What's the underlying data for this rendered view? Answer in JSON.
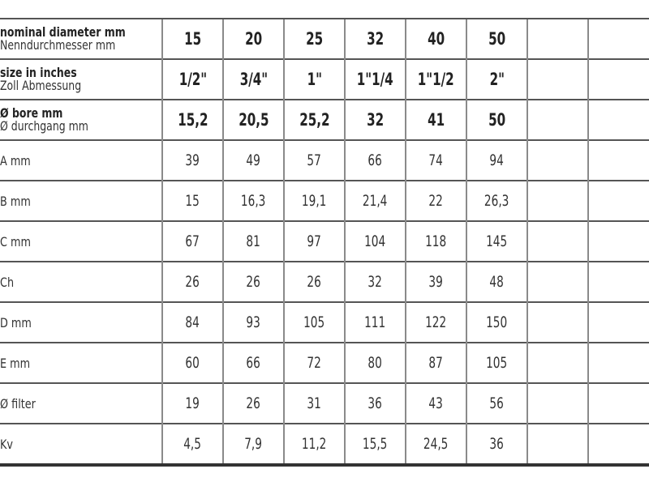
{
  "header_rows": [
    {
      "label_en": "nominal diameter mm",
      "label_de": "Nenndurchmesser mm",
      "values": [
        "15",
        "20",
        "25",
        "32",
        "40",
        "50",
        "",
        ""
      ]
    },
    {
      "label_en": "size in inches",
      "label_de": "Zoll Abmessung",
      "values": [
        "1/2\"",
        "3/4\"",
        "1\"",
        "1\"1/4",
        "1\"1/2",
        "2\"",
        "",
        ""
      ]
    },
    {
      "label_en": "Ø bore mm",
      "label_de": "Ø durchgang mm",
      "values": [
        "15,2",
        "20,5",
        "25,2",
        "32",
        "41",
        "50",
        "",
        ""
      ]
    }
  ],
  "rows": [
    {
      "label": "A mm",
      "values": [
        "39",
        "49",
        "57",
        "66",
        "74",
        "94",
        "",
        ""
      ]
    },
    {
      "label": "B mm",
      "values": [
        "15",
        "16,3",
        "19,1",
        "21,4",
        "22",
        "26,3",
        "",
        ""
      ]
    },
    {
      "label": "C mm",
      "values": [
        "67",
        "81",
        "97",
        "104",
        "118",
        "145",
        "",
        ""
      ]
    },
    {
      "label": "Ch",
      "values": [
        "26",
        "26",
        "26",
        "32",
        "39",
        "48",
        "",
        ""
      ]
    },
    {
      "label": "D mm",
      "values": [
        "84",
        "93",
        "105",
        "111",
        "122",
        "150",
        "",
        ""
      ]
    },
    {
      "label": "E mm",
      "values": [
        "60",
        "66",
        "72",
        "80",
        "87",
        "105",
        "",
        ""
      ]
    },
    {
      "label": "Ø filter",
      "values": [
        "19",
        "26",
        "31",
        "36",
        "43",
        "56",
        "",
        ""
      ]
    },
    {
      "label": "Kv",
      "values": [
        "4,5",
        "7,9",
        "11,2",
        "15,5",
        "24,5",
        "36",
        "",
        ""
      ]
    }
  ]
}
